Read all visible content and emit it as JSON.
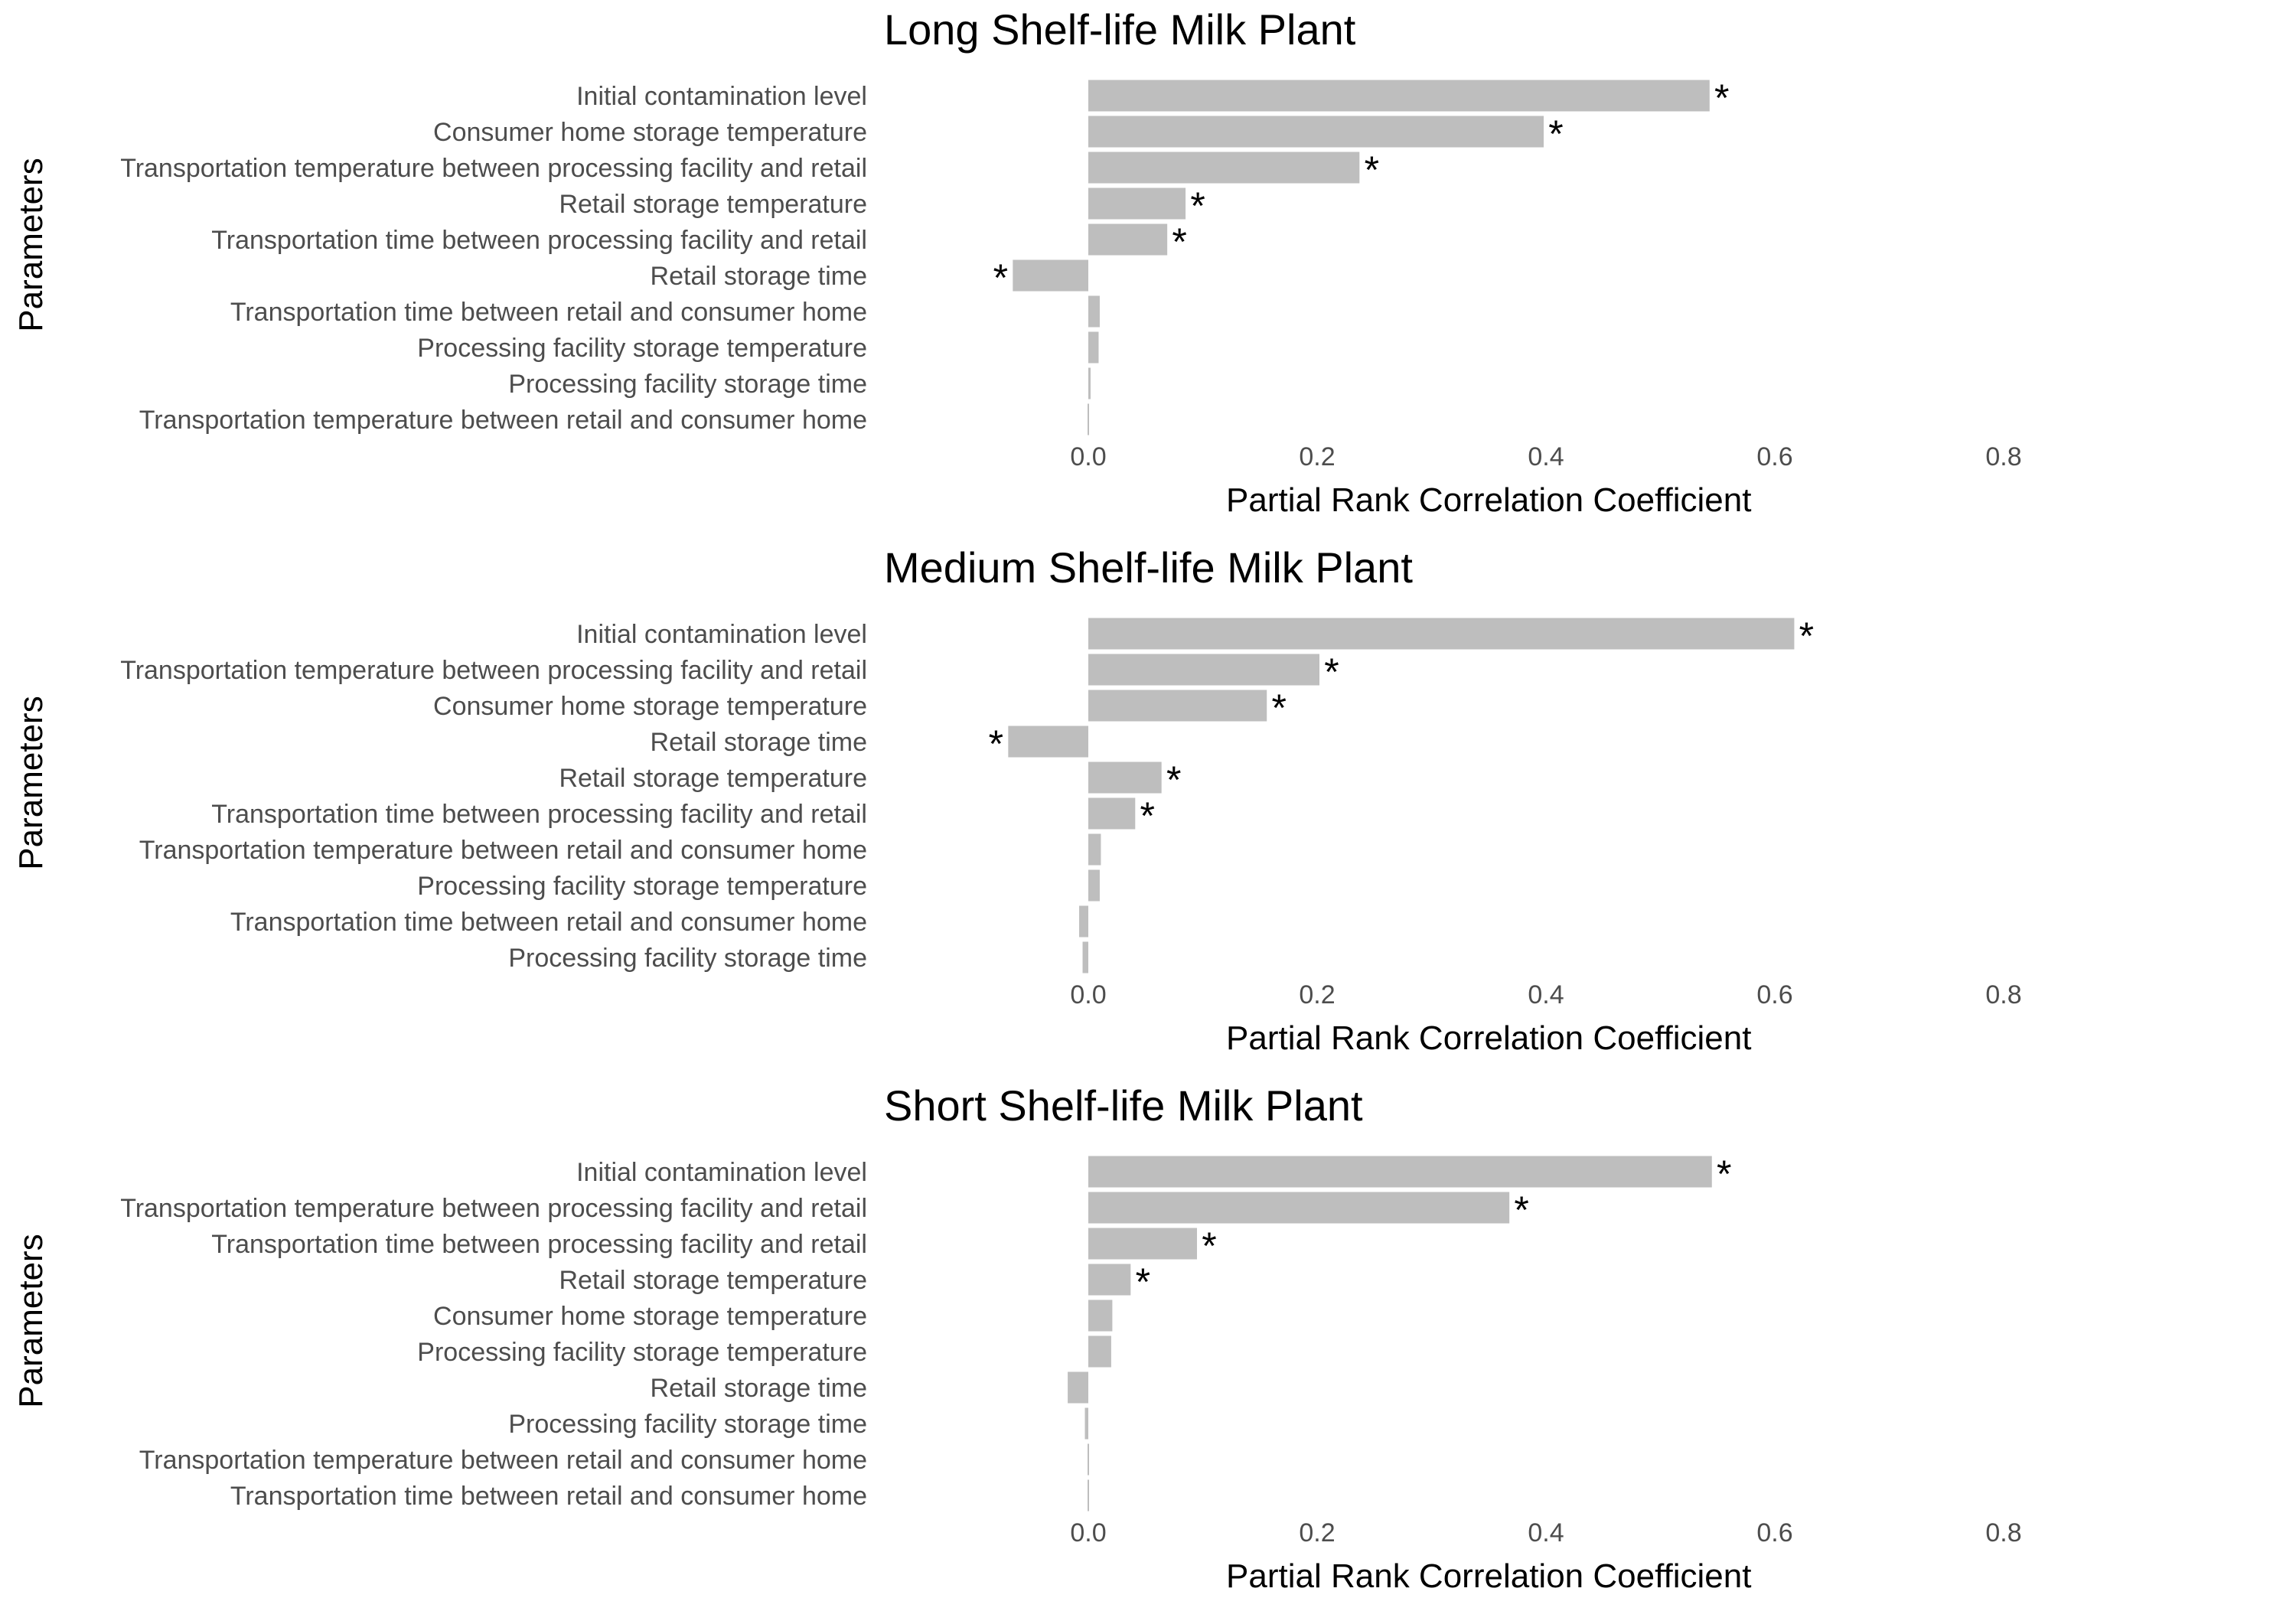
{
  "figure_background": "#ffffff",
  "bar_color": "#bebebe",
  "text_color": "#4d4d4d",
  "chart_data": [
    {
      "type": "bar",
      "orientation": "horizontal",
      "title": "Long Shelf-life Milk Plant",
      "xlabel": "Partial Rank Correlation Coefficient",
      "ylabel": "Parameters",
      "xlim": [
        -0.1,
        0.8
      ],
      "xticks": [
        "0.0",
        "0.2",
        "0.4",
        "0.6",
        "0.8"
      ],
      "xtick_values": [
        0,
        0.2,
        0.4,
        0.6,
        0.8
      ],
      "grid": false,
      "categories": [
        "Initial contamination level",
        "Consumer home storage temperature",
        "Transportation temperature between processing facility and retail",
        "Retail storage temperature",
        "Transportation time between processing facility and retail",
        "Retail storage time",
        "Transportation time between retail and consumer home",
        "Processing facility storage temperature",
        "Processing facility storage time",
        "Transportation temperature between retail and consumer home"
      ],
      "values": [
        0.543,
        0.398,
        0.237,
        0.085,
        0.069,
        -0.066,
        0.01,
        0.009,
        0.002,
        0.001
      ],
      "significant": [
        true,
        true,
        true,
        true,
        true,
        true,
        false,
        false,
        false,
        false
      ],
      "significance_marker": "*"
    },
    {
      "type": "bar",
      "orientation": "horizontal",
      "title": "Medium Shelf-life Milk Plant",
      "xlabel": "Partial Rank Correlation Coefficient",
      "ylabel": "Parameters",
      "xlim": [
        -0.1,
        0.8
      ],
      "xticks": [
        "0.0",
        "0.2",
        "0.4",
        "0.6",
        "0.8"
      ],
      "xtick_values": [
        0,
        0.2,
        0.4,
        0.6,
        0.8
      ],
      "grid": false,
      "categories": [
        "Initial contamination level",
        "Transportation temperature between processing facility and retail",
        "Consumer home storage temperature",
        "Retail storage time",
        "Retail storage temperature",
        "Transportation time between processing facility and retail",
        "Transportation temperature between retail and consumer home",
        "Processing facility storage temperature",
        "Transportation time between retail and consumer home",
        "Processing facility storage time"
      ],
      "values": [
        0.617,
        0.202,
        0.156,
        -0.07,
        0.064,
        0.041,
        0.011,
        0.01,
        -0.008,
        -0.005
      ],
      "significant": [
        true,
        true,
        true,
        true,
        true,
        true,
        false,
        false,
        false,
        false
      ],
      "significance_marker": "*"
    },
    {
      "type": "bar",
      "orientation": "horizontal",
      "title": "Short Shelf-life Milk Plant",
      "xlabel": "Partial Rank Correlation Coefficient",
      "ylabel": "Parameters",
      "xlim": [
        -0.1,
        0.8
      ],
      "xticks": [
        "0.0",
        "0.2",
        "0.4",
        "0.6",
        "0.8"
      ],
      "xtick_values": [
        0,
        0.2,
        0.4,
        0.6,
        0.8
      ],
      "grid": false,
      "categories": [
        "Initial contamination level",
        "Transportation temperature between processing facility and retail",
        "Transportation time between processing facility and retail",
        "Retail storage temperature",
        "Consumer home storage temperature",
        "Processing facility storage temperature",
        "Retail storage time",
        "Processing facility storage time",
        "Transportation temperature between retail and consumer home",
        "Transportation time between retail and consumer home"
      ],
      "values": [
        0.545,
        0.368,
        0.095,
        0.037,
        0.021,
        0.02,
        -0.018,
        -0.003,
        0.001,
        0.0005
      ],
      "significant": [
        true,
        true,
        true,
        true,
        false,
        false,
        false,
        false,
        false,
        false
      ],
      "significance_marker": "*"
    }
  ]
}
